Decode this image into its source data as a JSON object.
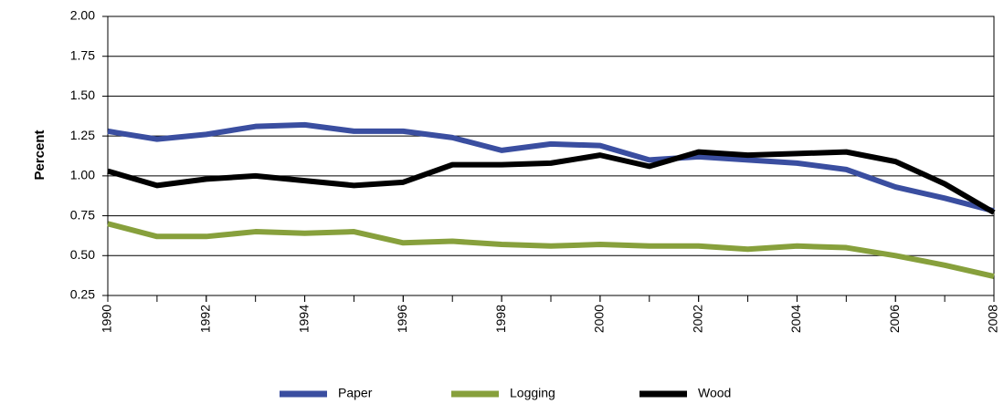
{
  "chart_data": {
    "type": "line",
    "y_label": "Percent",
    "x": [
      1990,
      1991,
      1992,
      1993,
      1994,
      1995,
      1996,
      1997,
      1998,
      1999,
      2000,
      2001,
      2002,
      2003,
      2004,
      2005,
      2006,
      2007,
      2008
    ],
    "series": [
      {
        "name": "Paper",
        "color": "#3a4ea0",
        "values": [
          1.28,
          1.23,
          1.26,
          1.31,
          1.32,
          1.28,
          1.28,
          1.24,
          1.16,
          1.2,
          1.19,
          1.1,
          1.12,
          1.1,
          1.08,
          1.04,
          0.93,
          0.86,
          0.78
        ]
      },
      {
        "name": "Logging",
        "color": "#87a03c",
        "values": [
          0.7,
          0.62,
          0.62,
          0.65,
          0.64,
          0.65,
          0.58,
          0.59,
          0.57,
          0.56,
          0.57,
          0.56,
          0.56,
          0.54,
          0.56,
          0.55,
          0.5,
          0.44,
          0.37
        ]
      },
      {
        "name": "Wood",
        "color": "#000000",
        "values": [
          1.03,
          0.94,
          0.98,
          1.0,
          0.97,
          0.94,
          0.96,
          1.07,
          1.07,
          1.08,
          1.13,
          1.06,
          1.15,
          1.13,
          1.14,
          1.15,
          1.09,
          0.95,
          0.77
        ]
      }
    ],
    "xlim": [
      1990,
      2008
    ],
    "xticks": [
      1990,
      1992,
      1994,
      1996,
      1998,
      2000,
      2002,
      2004,
      2006,
      2008
    ],
    "ylim": [
      0.25,
      2.0
    ],
    "yticks": [
      {
        "value": 0.25,
        "label": "0.25"
      },
      {
        "value": 0.5,
        "label": "0.50"
      },
      {
        "value": 0.75,
        "label": "0.75"
      },
      {
        "value": 1.0,
        "label": "1.00"
      },
      {
        "value": 1.25,
        "label": "1.25"
      },
      {
        "value": 1.5,
        "label": "1.50"
      },
      {
        "value": 1.75,
        "label": "1.75"
      },
      {
        "value": 2.0,
        "label": "2.00"
      }
    ],
    "grid": true,
    "legend": "bottom"
  }
}
